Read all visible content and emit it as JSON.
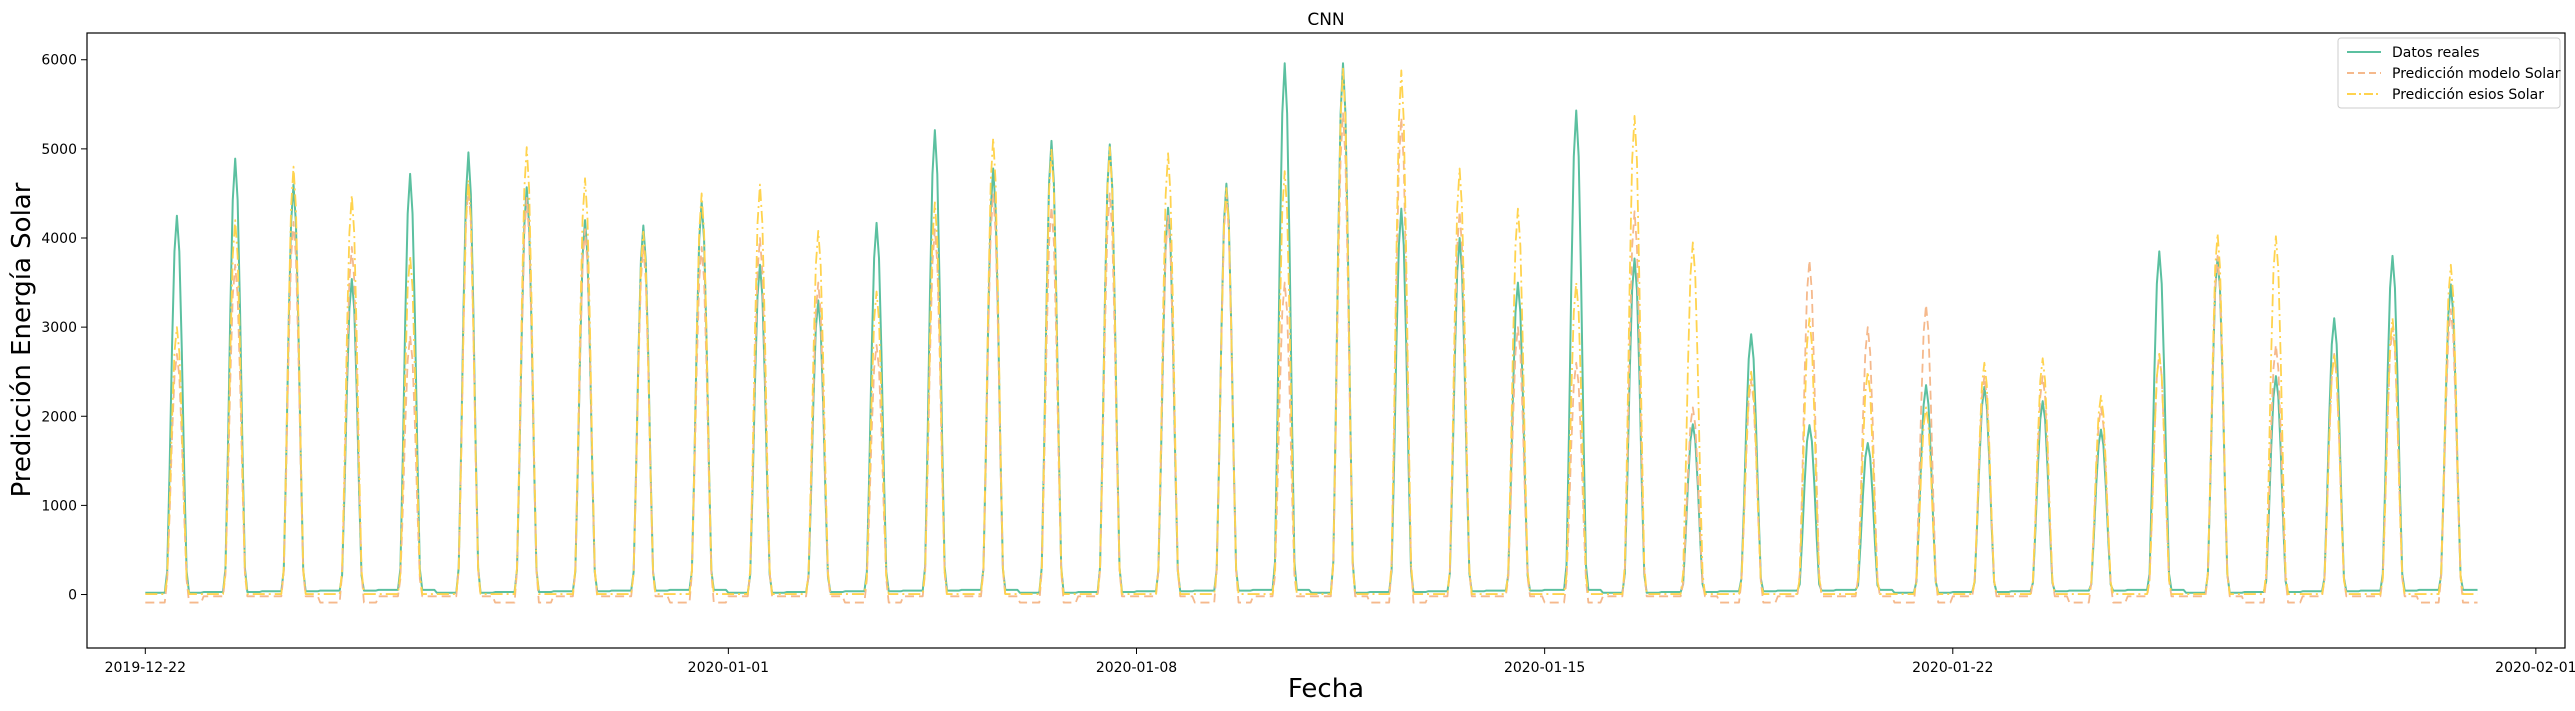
{
  "chart_data": {
    "type": "line",
    "title": "CNN",
    "xlabel": "Fecha",
    "ylabel": "Predicción Energía Solar",
    "xlim": [
      "2019-12-21T00:00",
      "2020-02-01T12:00"
    ],
    "ylim": [
      -600,
      6300
    ],
    "grid": false,
    "legend_position": "top-right",
    "x_ticks": [
      "2019-12-22",
      "2020-01-01",
      "2020-01-08",
      "2020-01-15",
      "2020-01-22",
      "2020-02-01"
    ],
    "y_ticks": [
      0,
      1000,
      2000,
      3000,
      4000,
      5000,
      6000
    ],
    "first_day": "2019-12-22",
    "series": [
      {
        "name": "Datos reales",
        "color": "#5bc0a0",
        "line_style": "solid",
        "daily_peaks": [
          4250,
          4890,
          4600,
          3540,
          4720,
          4960,
          4570,
          4200,
          4140,
          4400,
          3700,
          3300,
          4170,
          5210,
          4780,
          5090,
          5050,
          4340,
          4610,
          5960,
          5960,
          4330,
          4000,
          3500,
          5430,
          3770,
          1910,
          2920,
          1900,
          1700,
          2350,
          2330,
          2170,
          1850,
          3850,
          3780,
          2450,
          3100,
          3800,
          3480
        ]
      },
      {
        "name": "Predicción modelo Solar",
        "color": "#f5b98c",
        "line_style": "dashed",
        "daily_peaks": [
          2700,
          3700,
          4180,
          3900,
          2900,
          4600,
          4450,
          4100,
          3900,
          3900,
          4000,
          3500,
          2800,
          4100,
          4500,
          4350,
          4500,
          4250,
          4500,
          3500,
          5400,
          5350,
          4300,
          3000,
          2600,
          4300,
          2100,
          2400,
          3750,
          3000,
          3250,
          2450,
          2450,
          2100,
          2700,
          3800,
          2800,
          2700,
          3000,
          3200
        ]
      },
      {
        "name": "Predicción esios Solar",
        "color": "#ffd34e",
        "line_style": "dashdot",
        "daily_peaks": [
          3000,
          4200,
          4800,
          4480,
          3800,
          4650,
          5020,
          4670,
          4070,
          4500,
          4600,
          4080,
          3400,
          4400,
          5120,
          4990,
          5020,
          4950,
          4560,
          4750,
          5900,
          5880,
          4780,
          4330,
          3500,
          5370,
          3950,
          2500,
          3100,
          2500,
          2100,
          2600,
          2650,
          2230,
          2700,
          4050,
          4020,
          2700,
          3100,
          3700
        ]
      }
    ]
  }
}
